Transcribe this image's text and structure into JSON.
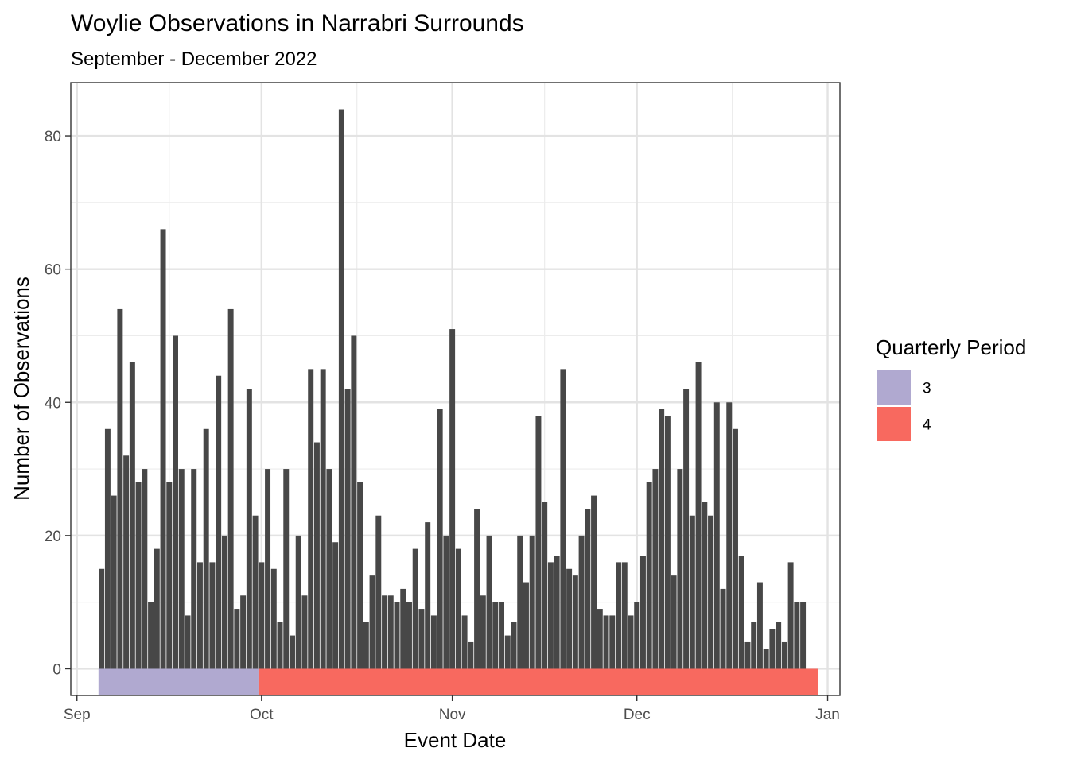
{
  "chart_data": {
    "type": "bar",
    "title": "Woylie Observations in Narrabri Surrounds",
    "subtitle": "September - December 2022",
    "xlabel": "Event Date",
    "ylabel": "Number of Observations",
    "x_start_date": "2022-09-05",
    "values": [
      15,
      36,
      26,
      54,
      32,
      46,
      28,
      30,
      10,
      18,
      66,
      28,
      50,
      30,
      8,
      30,
      16,
      36,
      16,
      44,
      20,
      54,
      9,
      11,
      42,
      23,
      16,
      30,
      15,
      7,
      30,
      5,
      20,
      11,
      45,
      34,
      45,
      30,
      19,
      84,
      42,
      50,
      28,
      7,
      14,
      23,
      11,
      11,
      10,
      12,
      10,
      18,
      9,
      22,
      8,
      39,
      20,
      51,
      18,
      8,
      4,
      24,
      11,
      20,
      10,
      10,
      5,
      7,
      20,
      13,
      20,
      38,
      25,
      16,
      17,
      45,
      15,
      14,
      20,
      24,
      26,
      9,
      8,
      8,
      16,
      16,
      8,
      10,
      17,
      28,
      30,
      39,
      38,
      14,
      30,
      42,
      23,
      46,
      25,
      23,
      40,
      12,
      40,
      36,
      17,
      4,
      7,
      13,
      3,
      6,
      7,
      4,
      16,
      10,
      10
    ],
    "xlim": [
      "2022-08-31",
      "2023-01-03"
    ],
    "ylim": [
      -4,
      88
    ],
    "x_ticks": [
      {
        "date": "2022-09-01",
        "label": "Sep"
      },
      {
        "date": "2022-10-01",
        "label": "Oct"
      },
      {
        "date": "2022-11-01",
        "label": "Nov"
      },
      {
        "date": "2022-12-01",
        "label": "Dec"
      },
      {
        "date": "2023-01-01",
        "label": "Jan"
      }
    ],
    "y_ticks": [
      0,
      20,
      40,
      60,
      80
    ],
    "bar_color": "#474747",
    "period_band": {
      "y_range": [
        -4,
        0
      ],
      "segments": [
        {
          "period": "3",
          "start": "2022-09-05",
          "end": "2022-10-01",
          "color": "#B0A9D0"
        },
        {
          "period": "4",
          "start": "2022-10-01",
          "end": "2022-12-31",
          "color": "#F8695F"
        }
      ]
    },
    "legend": {
      "title": "Quarterly Period",
      "position": "right",
      "items": [
        {
          "label": "3",
          "color": "#B0A9D0"
        },
        {
          "label": "4",
          "color": "#F8695F"
        }
      ]
    },
    "grid": true
  }
}
